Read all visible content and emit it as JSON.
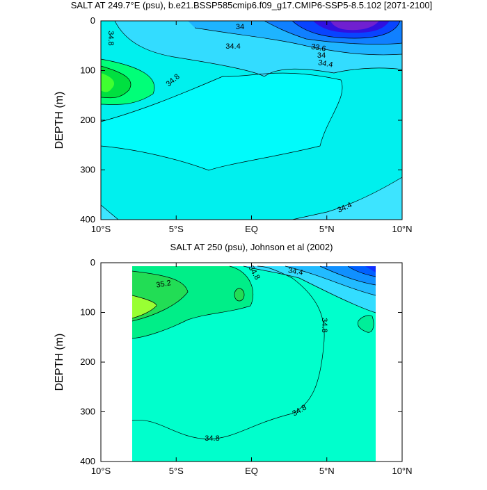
{
  "chart_data": [
    {
      "type": "contour",
      "title": "SALT AT 249.7°E (psu), b.e21.BSSP585cmip6.f09_g17.CMIP6-SSP5-8.5.102 [2071-2100]",
      "ylabel": "DEPTH (m)",
      "xlim": [
        -10,
        10
      ],
      "xticks": [
        {
          "value": -10,
          "label": "10°S"
        },
        {
          "value": -5,
          "label": "5°S"
        },
        {
          "value": 0,
          "label": "EQ"
        },
        {
          "value": 5,
          "label": "5°N"
        },
        {
          "value": 10,
          "label": "10°N"
        }
      ],
      "ylim": [
        0,
        400
      ],
      "yticks": [
        0,
        100,
        200,
        300,
        400
      ],
      "y_reversed": true,
      "contour_labels": [
        34.8,
        34,
        34.4,
        34.8,
        33.6,
        34,
        34.4,
        34.4
      ]
    },
    {
      "type": "contour",
      "title": "SALT AT 250 (psu), Johnson et al (2002)",
      "ylabel": "DEPTH (m)",
      "xlim": [
        -10,
        10
      ],
      "xticks": [
        {
          "value": -10,
          "label": "10°S"
        },
        {
          "value": -5,
          "label": "5°S"
        },
        {
          "value": 0,
          "label": "EQ"
        },
        {
          "value": 5,
          "label": "5°N"
        },
        {
          "value": 10,
          "label": "10°N"
        }
      ],
      "ylim": [
        0,
        400
      ],
      "yticks": [
        0,
        100,
        200,
        300,
        400
      ],
      "y_reversed": true,
      "contour_labels": [
        34.8,
        34.4,
        35.2,
        34.8,
        34.8,
        34.8
      ]
    }
  ]
}
